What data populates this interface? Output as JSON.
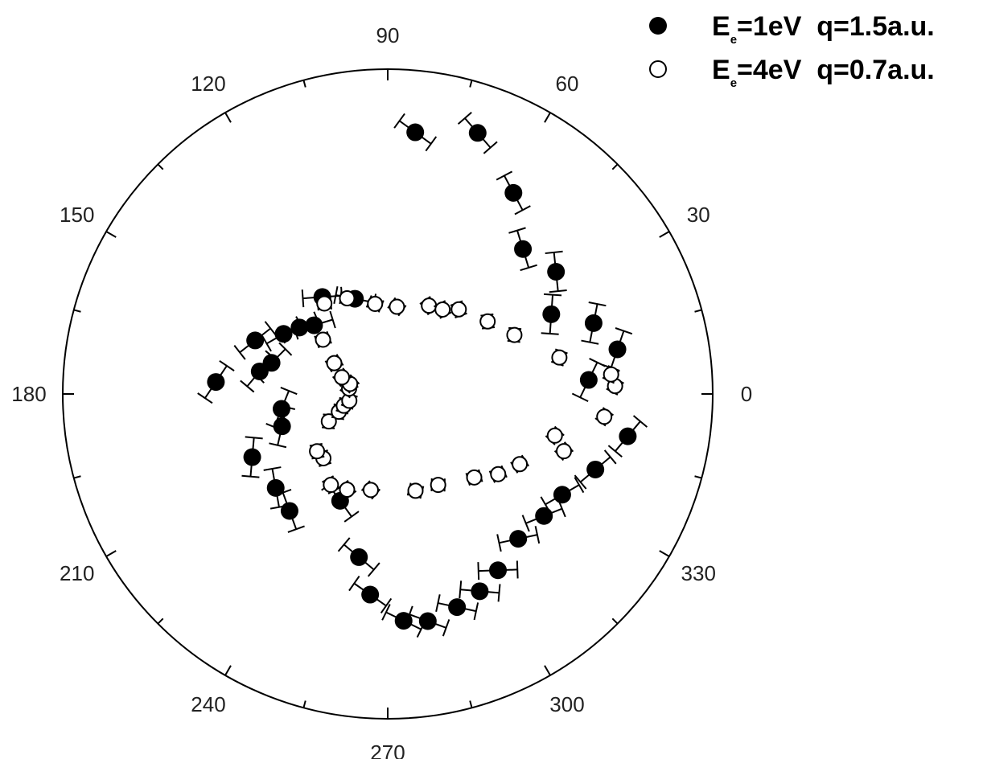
{
  "chart_data": {
    "type": "scatter",
    "coordinate_system": "polar",
    "angle_unit": "degrees",
    "angle_tick_labels": [
      "0",
      "30",
      "60",
      "90",
      "120",
      "150",
      "180",
      "210",
      "240",
      "270",
      "300",
      "330"
    ],
    "angle_ticks": [
      0,
      30,
      60,
      90,
      120,
      150,
      180,
      210,
      240,
      270,
      300,
      330
    ],
    "minor_tick_step": 15,
    "rmax": 1.0,
    "grid": false,
    "legend_placement": "top-right",
    "legend": [
      {
        "prefix": "E",
        "subscript": "e",
        "text": "=1eV  q=1.5a.u.",
        "marker": "filled-circle"
      },
      {
        "prefix": "E",
        "subscript": "e",
        "text": "=4eV  q=0.7a.u.",
        "marker": "open-circle"
      }
    ],
    "series": [
      {
        "marker": "filled",
        "points": [
          {
            "theta": -10,
            "r": 0.75,
            "err": 0.06
          },
          {
            "theta": -20,
            "r": 0.68,
            "err": 0.06
          },
          {
            "theta": -30,
            "r": 0.62,
            "err": 0.06
          },
          {
            "theta": -38,
            "r": 0.61,
            "err": 0.06
          },
          {
            "theta": -48,
            "r": 0.6,
            "err": 0.06
          },
          {
            "theta": -58,
            "r": 0.64,
            "err": 0.06
          },
          {
            "theta": -65,
            "r": 0.67,
            "err": 0.06
          },
          {
            "theta": -72,
            "r": 0.69,
            "err": 0.06
          },
          {
            "theta": -80,
            "r": 0.71,
            "err": 0.06
          },
          {
            "theta": -86,
            "r": 0.7,
            "err": 0.06
          },
          {
            "theta": -95,
            "r": 0.62,
            "err": 0.06
          },
          {
            "theta": -100,
            "r": 0.51,
            "err": 0.06
          },
          {
            "theta": -114,
            "r": 0.36,
            "err": 0.06
          },
          {
            "theta": -130,
            "r": 0.47,
            "err": 0.06
          },
          {
            "theta": -140,
            "r": 0.45,
            "err": 0.06
          },
          {
            "theta": -155,
            "r": 0.46,
            "err": 0.06
          },
          {
            "theta": -163,
            "r": 0.34,
            "err": 0.06
          },
          {
            "theta": -172,
            "r": 0.33,
            "err": 0.06
          },
          {
            "theta": 176,
            "r": 0.53,
            "err": 0.06
          },
          {
            "theta": 170,
            "r": 0.4,
            "err": 0.06
          },
          {
            "theta": 165,
            "r": 0.37,
            "err": 0.06
          },
          {
            "theta": 158,
            "r": 0.44,
            "err": 0.06
          },
          {
            "theta": 150,
            "r": 0.37,
            "err": 0.06
          },
          {
            "theta": 143,
            "r": 0.34,
            "err": 0.06
          },
          {
            "theta": 137,
            "r": 0.31,
            "err": 0.06
          },
          {
            "theta": 124,
            "r": 0.36,
            "err": 0.06
          },
          {
            "theta": 109,
            "r": 0.31,
            "err": 0.06
          },
          {
            "theta": 84,
            "r": 0.81,
            "err": 0.06
          },
          {
            "theta": 71,
            "r": 0.85,
            "err": 0.06
          },
          {
            "theta": 58,
            "r": 0.73,
            "err": 0.06
          },
          {
            "theta": 47,
            "r": 0.61,
            "err": 0.06
          },
          {
            "theta": 36,
            "r": 0.64,
            "err": 0.06
          },
          {
            "theta": 26,
            "r": 0.56,
            "err": 0.06
          },
          {
            "theta": 19,
            "r": 0.67,
            "err": 0.06
          },
          {
            "theta": 11,
            "r": 0.72,
            "err": 0.06
          },
          {
            "theta": 4,
            "r": 0.62,
            "err": 0.06
          }
        ]
      },
      {
        "marker": "open",
        "points": [
          {
            "theta": 2,
            "r": 0.7,
            "err": 0.02
          },
          {
            "theta": -6,
            "r": 0.67,
            "err": 0.02
          },
          {
            "theta": -14,
            "r": 0.53,
            "err": 0.02
          },
          {
            "theta": -18,
            "r": 0.57,
            "err": 0.02
          },
          {
            "theta": -28,
            "r": 0.46,
            "err": 0.02
          },
          {
            "theta": -36,
            "r": 0.42,
            "err": 0.02
          },
          {
            "theta": -44,
            "r": 0.37,
            "err": 0.02
          },
          {
            "theta": -61,
            "r": 0.32,
            "err": 0.02
          },
          {
            "theta": -74,
            "r": 0.31,
            "err": 0.02
          },
          {
            "theta": -100,
            "r": 0.3,
            "err": 0.02
          },
          {
            "theta": -113,
            "r": 0.32,
            "err": 0.02
          },
          {
            "theta": -122,
            "r": 0.33,
            "err": 0.02
          },
          {
            "theta": -135,
            "r": 0.28,
            "err": 0.02
          },
          {
            "theta": -141,
            "r": 0.28,
            "err": 0.02
          },
          {
            "theta": -155,
            "r": 0.2,
            "err": 0.02
          },
          {
            "theta": -160,
            "r": 0.16,
            "err": 0.02
          },
          {
            "theta": -165,
            "r": 0.14,
            "err": 0.02
          },
          {
            "theta": -170,
            "r": 0.12,
            "err": 0.02
          },
          {
            "theta": 172,
            "r": 0.12,
            "err": 0.02
          },
          {
            "theta": 165,
            "r": 0.12,
            "err": 0.02
          },
          {
            "theta": 160,
            "r": 0.15,
            "err": 0.02
          },
          {
            "theta": 150,
            "r": 0.19,
            "err": 0.02
          },
          {
            "theta": 140,
            "r": 0.26,
            "err": 0.02
          },
          {
            "theta": 125,
            "r": 0.34,
            "err": 0.02
          },
          {
            "theta": 113,
            "r": 0.32,
            "err": 0.02
          },
          {
            "theta": 98,
            "r": 0.28,
            "err": 0.02
          },
          {
            "theta": 84,
            "r": 0.27,
            "err": 0.02
          },
          {
            "theta": 65,
            "r": 0.3,
            "err": 0.02
          },
          {
            "theta": 57,
            "r": 0.31,
            "err": 0.02
          },
          {
            "theta": 50,
            "r": 0.34,
            "err": 0.02
          },
          {
            "theta": 36,
            "r": 0.38,
            "err": 0.02
          },
          {
            "theta": 25,
            "r": 0.43,
            "err": 0.02
          },
          {
            "theta": 12,
            "r": 0.54,
            "err": 0.02
          },
          {
            "theta": 5,
            "r": 0.69,
            "err": 0.02
          }
        ]
      }
    ]
  }
}
